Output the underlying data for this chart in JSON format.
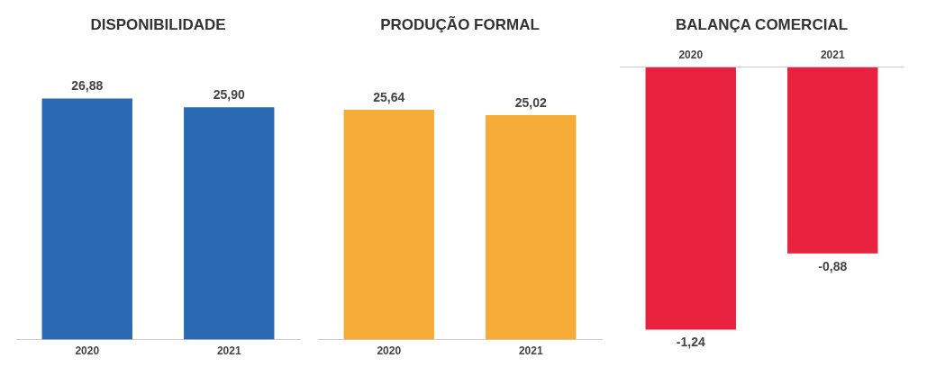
{
  "chart_data": [
    {
      "type": "bar",
      "title": "DISPONIBILIDADE",
      "categories": [
        "2020",
        "2021"
      ],
      "values": [
        26.88,
        25.9
      ],
      "value_labels": [
        "26,88",
        "25,90"
      ],
      "color": "#2a6ab5",
      "grid": false,
      "legend": false
    },
    {
      "type": "bar",
      "title": "PRODUÇÃO FORMAL",
      "categories": [
        "2020",
        "2021"
      ],
      "values": [
        25.64,
        25.02
      ],
      "value_labels": [
        "25,64",
        "25,02"
      ],
      "color": "#f6ad37",
      "grid": false,
      "legend": false
    },
    {
      "type": "bar",
      "title": "BALANÇA COMERCIAL",
      "categories": [
        "2020",
        "2021"
      ],
      "values": [
        -1.24,
        -0.88
      ],
      "value_labels": [
        "-1,24",
        "-0,88"
      ],
      "color": "#e8213f",
      "grid": false,
      "legend": false
    }
  ]
}
